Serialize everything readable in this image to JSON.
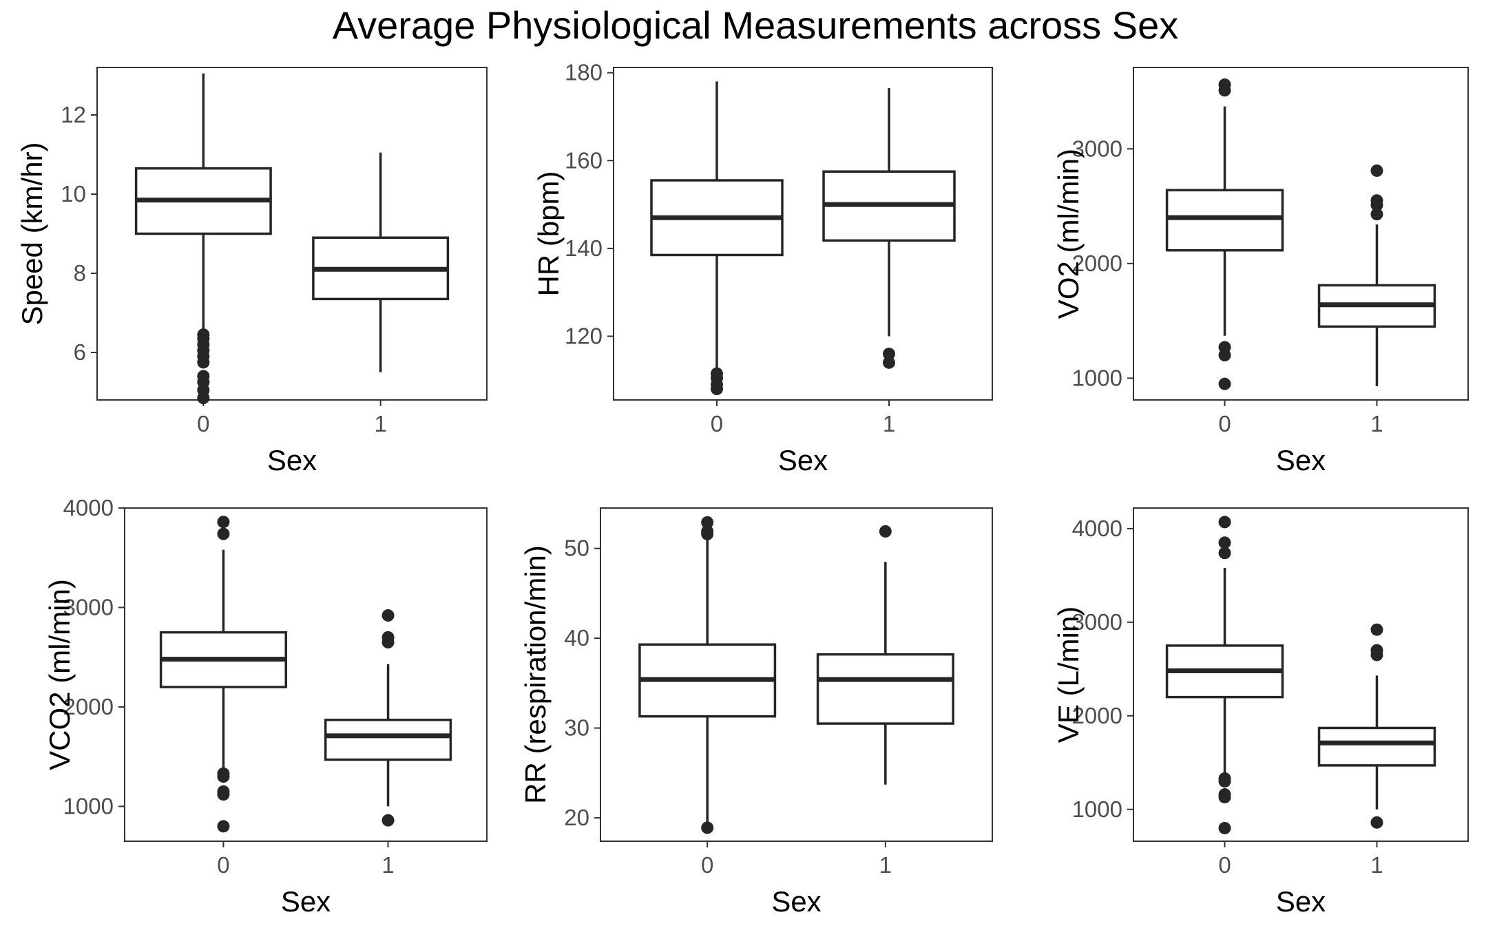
{
  "figure": {
    "title": "Average Physiological Measurements across Sex"
  },
  "chart_data": [
    {
      "type": "boxplot",
      "xlabel": "Sex",
      "ylabel": "Speed (km/hr)",
      "categories": [
        "0",
        "1"
      ],
      "yticks": [
        6,
        8,
        10,
        12
      ],
      "ylim": [
        4.8,
        13.2
      ],
      "boxes": [
        {
          "group": "0",
          "whisker_low": 6.5,
          "q1": 9.0,
          "median": 9.85,
          "q3": 10.65,
          "whisker_high": 13.05,
          "outliers": [
            4.85,
            5.05,
            5.25,
            5.4,
            5.75,
            5.9,
            6.05,
            6.2,
            6.35,
            6.45
          ]
        },
        {
          "group": "1",
          "whisker_low": 5.5,
          "q1": 7.35,
          "median": 8.1,
          "q3": 8.9,
          "whisker_high": 11.05,
          "outliers": []
        }
      ]
    },
    {
      "type": "boxplot",
      "xlabel": "Sex",
      "ylabel": "HR (bpm)",
      "categories": [
        "0",
        "1"
      ],
      "yticks": [
        120,
        140,
        160,
        180
      ],
      "ylim": [
        105.5,
        181.2
      ],
      "boxes": [
        {
          "group": "0",
          "whisker_low": 112,
          "q1": 138.5,
          "median": 147,
          "q3": 155.5,
          "whisker_high": 178,
          "outliers": [
            108,
            109,
            110.5,
            111.5
          ]
        },
        {
          "group": "1",
          "whisker_low": 120,
          "q1": 141.8,
          "median": 150,
          "q3": 157.5,
          "whisker_high": 176.5,
          "outliers": [
            114,
            116
          ]
        }
      ]
    },
    {
      "type": "boxplot",
      "xlabel": "Sex",
      "ylabel": "VO2 (ml/min)",
      "categories": [
        "0",
        "1"
      ],
      "yticks": [
        1000,
        2000,
        3000
      ],
      "ylim": [
        810,
        3710
      ],
      "boxes": [
        {
          "group": "0",
          "whisker_low": 1370,
          "q1": 2115,
          "median": 2400,
          "q3": 2640,
          "whisker_high": 3370,
          "outliers": [
            950,
            1200,
            1270,
            3510,
            3560
          ]
        },
        {
          "group": "1",
          "whisker_low": 930,
          "q1": 1450,
          "median": 1640,
          "q3": 1810,
          "whisker_high": 2340,
          "outliers": [
            2430,
            2510,
            2550,
            2810
          ]
        }
      ]
    },
    {
      "type": "boxplot",
      "xlabel": "Sex",
      "ylabel": "VCO2 (ml/min)",
      "categories": [
        "0",
        "1"
      ],
      "yticks": [
        1000,
        2000,
        3000,
        4000
      ],
      "ylim": [
        650,
        4000
      ],
      "boxes": [
        {
          "group": "0",
          "whisker_low": 1380,
          "q1": 2200,
          "median": 2480,
          "q3": 2750,
          "whisker_high": 3580,
          "outliers": [
            800,
            1120,
            1150,
            1300,
            1330,
            3740,
            3860
          ]
        },
        {
          "group": "1",
          "whisker_low": 1000,
          "q1": 1470,
          "median": 1710,
          "q3": 1870,
          "whisker_high": 2430,
          "outliers": [
            860,
            2650,
            2700,
            2920
          ]
        }
      ]
    },
    {
      "type": "boxplot",
      "xlabel": "Sex",
      "ylabel": "RR (respiration/min)",
      "categories": [
        "0",
        "1"
      ],
      "yticks": [
        20,
        30,
        40,
        50
      ],
      "ylim": [
        17.4,
        54.5
      ],
      "boxes": [
        {
          "group": "0",
          "whisker_low": 19.5,
          "q1": 31.3,
          "median": 35.4,
          "q3": 39.3,
          "whisker_high": 51.3,
          "outliers": [
            18.9,
            51.6,
            51.9,
            52.9
          ]
        },
        {
          "group": "1",
          "whisker_low": 23.7,
          "q1": 30.5,
          "median": 35.4,
          "q3": 38.2,
          "whisker_high": 48.5,
          "outliers": [
            51.9
          ]
        }
      ]
    },
    {
      "type": "boxplot",
      "xlabel": "Sex",
      "ylabel": "VE (L/min)",
      "categories": [
        "0",
        "1"
      ],
      "yticks": [
        1000,
        2000,
        3000,
        4000
      ],
      "ylim": [
        660,
        4220
      ],
      "boxes": [
        {
          "group": "0",
          "whisker_low": 1370,
          "q1": 2200,
          "median": 2480,
          "q3": 2750,
          "whisker_high": 3580,
          "outliers": [
            800,
            1130,
            1160,
            1300,
            1330,
            3740,
            3850,
            4070
          ]
        },
        {
          "group": "1",
          "whisker_low": 1000,
          "q1": 1470,
          "median": 1710,
          "q3": 1870,
          "whisker_high": 2430,
          "outliers": [
            860,
            2650,
            2700,
            2920
          ]
        }
      ]
    }
  ]
}
